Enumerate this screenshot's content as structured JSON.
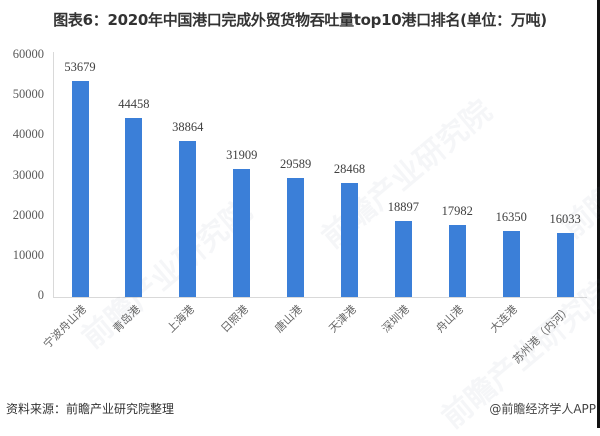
{
  "title": "图表6：2020年中国港口完成外贸货物吞吐量top10港口排名(单位：万吨)",
  "footer": {
    "source": "资料来源：前瞻产业研究院整理",
    "credit": "@前瞻经济学人APP"
  },
  "watermark": "前瞻产业研究院",
  "colors": {
    "bar": "#3b7fd8",
    "axis": "#d9d9d9"
  },
  "chart_data": {
    "type": "bar",
    "title": "图表6：2020年中国港口完成外贸货物吞吐量top10港口排名(单位：万吨)",
    "xlabel": "",
    "ylabel": "",
    "unit": "万吨",
    "categories": [
      "宁波舟山港",
      "青岛港",
      "上海港",
      "日照港",
      "唐山港",
      "天津港",
      "深圳港",
      "舟山港",
      "大连港",
      "苏州港（内河）"
    ],
    "values": [
      53679,
      44458,
      38864,
      31909,
      29589,
      28468,
      18897,
      17982,
      16350,
      16033
    ],
    "ylim": [
      0,
      60000
    ],
    "yticks": [
      "0",
      "10000",
      "20000",
      "30000",
      "40000",
      "50000",
      "60000"
    ],
    "grid": false,
    "legend": "none",
    "data_labels": true
  }
}
